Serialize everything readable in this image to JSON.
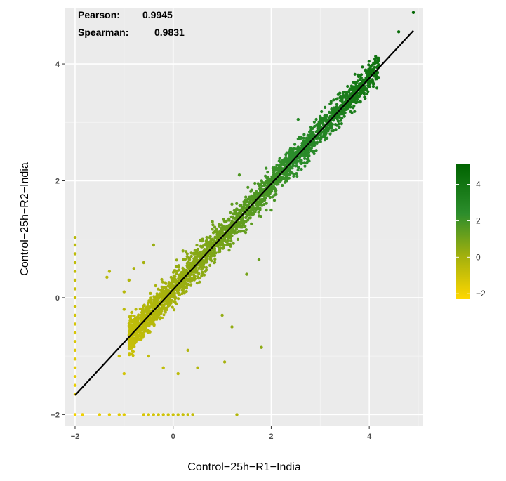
{
  "chart_data": {
    "type": "scatter",
    "title": "",
    "xlabel": "Control−25h−R1−India",
    "ylabel": "Control−25h−R2−India",
    "xlim": [
      -2.2,
      5.1
    ],
    "ylim": [
      -2.2,
      4.95
    ],
    "x_ticks": [
      -2,
      0,
      2,
      4
    ],
    "y_ticks": [
      -2,
      0,
      2,
      4
    ],
    "x_tick_labels": [
      "−2",
      "0",
      "2",
      "4"
    ],
    "y_tick_labels": [
      "−2",
      "0",
      "2",
      "4"
    ],
    "grid": true,
    "background": "#ebebeb",
    "annotations": [
      {
        "label": "Pearson:",
        "value": "0.9945"
      },
      {
        "label": "Spearman:",
        "value": "0.9831"
      }
    ],
    "fit_line": {
      "x": [
        -2,
        4.9
      ],
      "y": [
        -1.67,
        4.57
      ],
      "color": "#000000"
    },
    "color_scale": {
      "stops": [
        {
          "value": -2.3,
          "color": "#ffd700"
        },
        {
          "value": 0,
          "color": "#a5b10d"
        },
        {
          "value": 2.4,
          "color": "#2c8d2c"
        },
        {
          "value": 5.1,
          "color": "#006400"
        }
      ],
      "ticks": [
        4,
        2,
        0,
        -2
      ],
      "tick_labels": [
        "4",
        "2",
        "0",
        "−2"
      ],
      "position": "right"
    },
    "series": [
      {
        "points": [
          [
            -2,
            -1.65
          ],
          [
            -2,
            -1.5
          ],
          [
            -2,
            -1.35
          ],
          [
            -2,
            -1.2
          ],
          [
            -2,
            -1.05
          ],
          [
            -2,
            -0.9
          ],
          [
            -2,
            -0.75
          ],
          [
            -2,
            -0.6
          ],
          [
            -2,
            -0.45
          ],
          [
            -2,
            -0.3
          ],
          [
            -2,
            -0.15
          ],
          [
            -2,
            0
          ],
          [
            -2,
            0.15
          ],
          [
            -2,
            0.3
          ],
          [
            -2,
            0.45
          ],
          [
            -2,
            0.6
          ],
          [
            -2,
            0.75
          ],
          [
            -2,
            0.9
          ],
          [
            -2,
            1.03
          ],
          [
            -2,
            -2
          ],
          [
            -1.85,
            -2
          ],
          [
            -1.5,
            -2
          ],
          [
            -1.3,
            -2
          ],
          [
            -1.1,
            -2
          ],
          [
            -1.0,
            -2
          ],
          [
            -0.6,
            -2
          ],
          [
            -0.5,
            -2
          ],
          [
            -0.4,
            -2
          ],
          [
            -0.3,
            -2
          ],
          [
            -0.2,
            -2
          ],
          [
            -0.1,
            -2
          ],
          [
            0.0,
            -2
          ],
          [
            0.1,
            -2
          ],
          [
            0.2,
            -2
          ],
          [
            0.3,
            -2
          ],
          [
            0.4,
            -2
          ],
          [
            1.3,
            -2
          ],
          [
            -1.35,
            0.35
          ],
          [
            -1.3,
            0.45
          ],
          [
            -1.0,
            -1.3
          ],
          [
            -1.1,
            -1.0
          ],
          [
            -1.0,
            -0.2
          ],
          [
            -1.0,
            0.1
          ],
          [
            -0.9,
            0.3
          ],
          [
            -0.8,
            -0.7
          ],
          [
            -0.8,
            0.5
          ],
          [
            -0.65,
            -0.3
          ],
          [
            -0.6,
            0.6
          ],
          [
            -0.5,
            -1.0
          ],
          [
            -0.4,
            0.9
          ],
          [
            -0.2,
            -1.2
          ],
          [
            0.1,
            -1.3
          ],
          [
            0.3,
            -0.9
          ],
          [
            0.5,
            -1.2
          ],
          [
            1.0,
            -0.3
          ],
          [
            1.2,
            -0.5
          ],
          [
            1.05,
            -1.1
          ],
          [
            1.8,
            -0.85
          ],
          [
            1.5,
            0.4
          ],
          [
            1.75,
            0.65
          ],
          [
            0.2,
            0.8
          ],
          [
            0.6,
            1.0
          ],
          [
            0.8,
            1.3
          ],
          [
            1.2,
            1.6
          ],
          [
            1.35,
            2.1
          ],
          [
            1.75,
            1.4
          ],
          [
            1.9,
            1.5
          ],
          [
            2.0,
            1.5
          ],
          [
            2.3,
            2.4
          ],
          [
            2.4,
            2.3
          ],
          [
            2.55,
            3.05
          ],
          [
            3.0,
            3.1
          ],
          [
            3.3,
            3.2
          ],
          [
            3.4,
            3.5
          ],
          [
            3.6,
            3.3
          ],
          [
            3.7,
            3.6
          ],
          [
            3.8,
            3.8
          ],
          [
            4.0,
            3.9
          ],
          [
            4.1,
            4.0
          ],
          [
            4.15,
            4.1
          ],
          [
            4.6,
            4.55
          ],
          [
            4.9,
            4.88
          ]
        ]
      }
    ]
  }
}
